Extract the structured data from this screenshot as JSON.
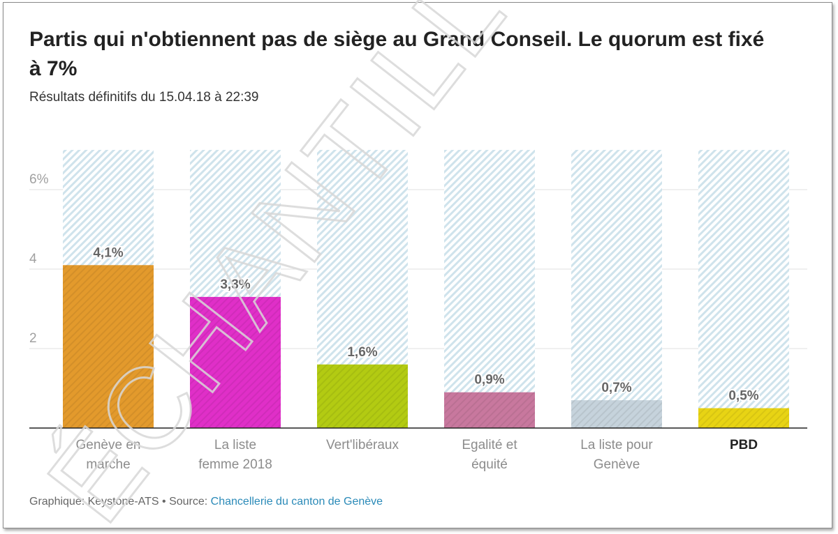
{
  "header": {
    "title": "Partis qui n'obtiennent pas de siège au Grand Conseil. Le quorum est fixé à 7%",
    "subtitle": "Résultats définitifs du 15.04.18 à 22:39"
  },
  "footer": {
    "credit_label": "Graphique: Keystone-ATS",
    "separator": " • ",
    "source_label": "Source: ",
    "source_link": "Chancellerie du canton de Genève"
  },
  "watermark": {
    "text": "ÉCHANTILLON"
  },
  "chart_data": {
    "type": "bar",
    "title": "Partis qui n'obtiennent pas de siège au Grand Conseil. Le quorum est fixé à 7%",
    "subtitle": "Résultats définitifs du 15.04.18 à 22:39",
    "xlabel": "",
    "ylabel": "",
    "ylim": [
      0,
      7
    ],
    "quorum": 7,
    "grid": true,
    "yticks": [
      {
        "value": 2,
        "label": "2"
      },
      {
        "value": 4,
        "label": "4"
      },
      {
        "value": 6,
        "label": "6%"
      }
    ],
    "categories": [
      "Genève en marche",
      "La liste femme 2018",
      "Vert'libéraux",
      "Egalité et équité",
      "La liste pour Genève",
      "PBD"
    ],
    "category_lines": [
      [
        "Genève en",
        "marche"
      ],
      [
        "La liste",
        "femme 2018"
      ],
      [
        "Vert'libéraux"
      ],
      [
        "Egalité et",
        "équité"
      ],
      [
        "La liste pour",
        "Genève"
      ],
      [
        "PBD"
      ]
    ],
    "values": [
      4.1,
      3.3,
      1.6,
      0.9,
      0.7,
      0.5
    ],
    "value_labels": [
      "4,1%",
      "3,3%",
      "1,6%",
      "0,9%",
      "0,7%",
      "0,5%"
    ],
    "colors": [
      "#e39a2c",
      "#e02fc8",
      "#b3cb12",
      "#c8789e",
      "#c6d3dc",
      "#e8d414"
    ],
    "highlighted_category": "PBD",
    "background_color": "#cfe3ec"
  }
}
